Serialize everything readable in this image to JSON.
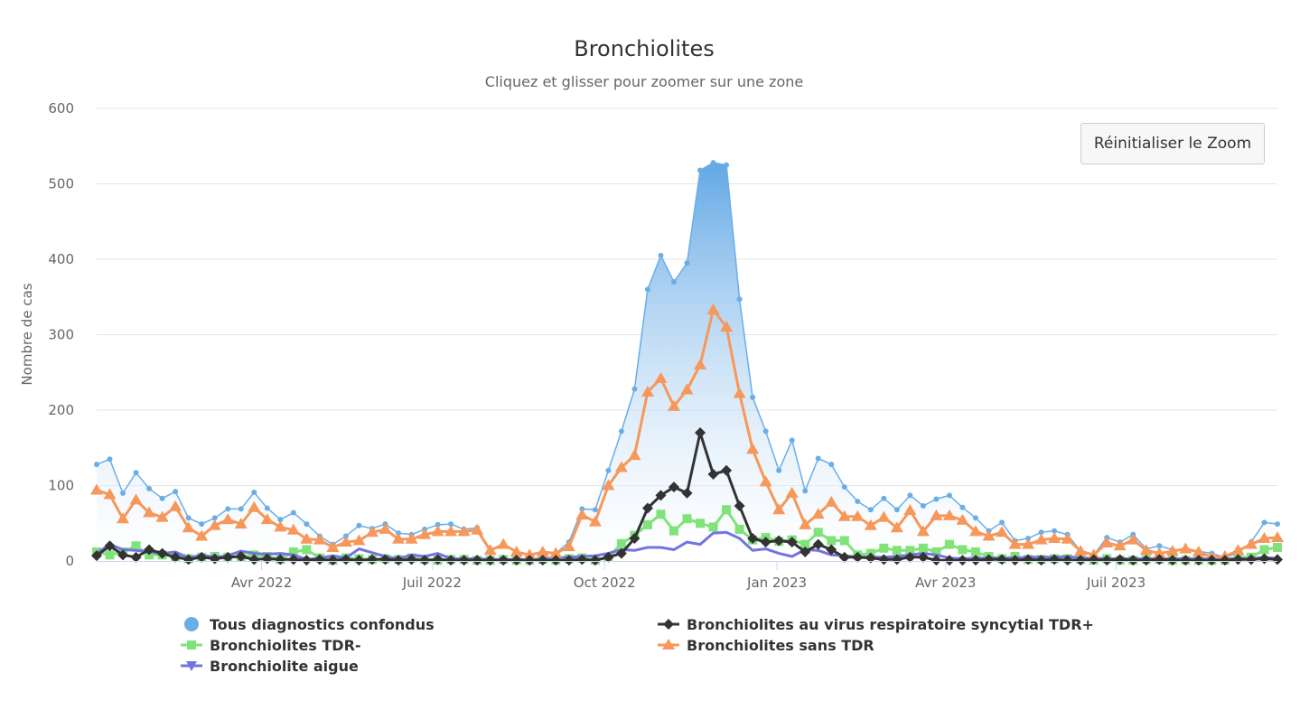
{
  "chart_data": {
    "type": "line",
    "title": "Bronchiolites",
    "subtitle": "Cliquez et glisser pour zoomer sur une zone",
    "ylabel": "Nombre de cas",
    "xlabel": "",
    "ylim": [
      0,
      600
    ],
    "yticks": [
      0,
      100,
      200,
      300,
      400,
      500,
      600
    ],
    "xticks": [
      {
        "date": "2022-04-01",
        "label": "Avr 2022"
      },
      {
        "date": "2022-07-01",
        "label": "Juil 2022"
      },
      {
        "date": "2022-10-01",
        "label": "Oct 2022"
      },
      {
        "date": "2023-01-01",
        "label": "Jan 2023"
      },
      {
        "date": "2023-04-01",
        "label": "Avr 2023"
      },
      {
        "date": "2023-07-01",
        "label": "Juil 2023"
      }
    ],
    "grid": "horizontal",
    "legend_position": "bottom",
    "x": [
      "2022-01-03",
      "2022-01-10",
      "2022-01-17",
      "2022-01-24",
      "2022-01-31",
      "2022-02-07",
      "2022-02-14",
      "2022-02-21",
      "2022-02-28",
      "2022-03-07",
      "2022-03-14",
      "2022-03-21",
      "2022-03-28",
      "2022-04-04",
      "2022-04-11",
      "2022-04-18",
      "2022-04-25",
      "2022-05-02",
      "2022-05-09",
      "2022-05-16",
      "2022-05-23",
      "2022-05-30",
      "2022-06-06",
      "2022-06-13",
      "2022-06-20",
      "2022-06-27",
      "2022-07-04",
      "2022-07-11",
      "2022-07-18",
      "2022-07-25",
      "2022-08-01",
      "2022-08-08",
      "2022-08-15",
      "2022-08-22",
      "2022-08-29",
      "2022-09-05",
      "2022-09-12",
      "2022-09-19",
      "2022-09-26",
      "2022-10-03",
      "2022-10-10",
      "2022-10-17",
      "2022-10-24",
      "2022-10-31",
      "2022-11-07",
      "2022-11-14",
      "2022-11-21",
      "2022-11-28",
      "2022-12-05",
      "2022-12-12",
      "2022-12-19",
      "2022-12-26",
      "2023-01-02",
      "2023-01-09",
      "2023-01-16",
      "2023-01-23",
      "2023-01-30",
      "2023-02-06",
      "2023-02-13",
      "2023-02-20",
      "2023-02-27",
      "2023-03-06",
      "2023-03-13",
      "2023-03-20",
      "2023-03-27",
      "2023-04-03",
      "2023-04-10",
      "2023-04-17",
      "2023-04-24",
      "2023-05-01",
      "2023-05-08",
      "2023-05-15",
      "2023-05-22",
      "2023-05-29",
      "2023-06-05",
      "2023-06-12",
      "2023-06-19",
      "2023-06-26",
      "2023-07-03",
      "2023-07-10",
      "2023-07-17",
      "2023-07-24",
      "2023-07-31",
      "2023-08-07",
      "2023-08-14",
      "2023-08-21",
      "2023-08-28",
      "2023-09-04",
      "2023-09-11",
      "2023-09-18",
      "2023-09-25"
    ],
    "series": [
      {
        "name": "Tous diagnostics confondus",
        "color": "#6aaee8",
        "marker": "circle",
        "style": "area",
        "values": [
          128,
          135,
          90,
          117,
          96,
          83,
          92,
          57,
          49,
          57,
          69,
          69,
          91,
          70,
          55,
          64,
          49,
          33,
          22,
          33,
          47,
          43,
          49,
          37,
          35,
          42,
          48,
          49,
          42,
          44,
          15,
          22,
          12,
          8,
          12,
          10,
          25,
          69,
          68,
          120,
          172,
          228,
          360,
          405,
          370,
          395,
          518,
          528,
          525,
          347,
          217,
          172,
          120,
          160,
          93,
          136,
          128,
          98,
          79,
          68,
          83,
          68,
          87,
          73,
          82,
          87,
          71,
          57,
          40,
          51,
          27,
          30,
          38,
          40,
          35,
          13,
          8,
          31,
          25,
          35,
          16,
          20,
          15,
          15,
          13,
          10,
          5,
          10,
          25,
          51,
          49
        ]
      },
      {
        "name": "Bronchiolites au virus respiratoire syncytial TDR+",
        "color": "#333333",
        "marker": "diamond",
        "style": "line",
        "values": [
          7,
          20,
          8,
          5,
          15,
          10,
          5,
          2,
          5,
          3,
          5,
          6,
          2,
          3,
          2,
          2,
          1,
          2,
          1,
          2,
          1,
          2,
          2,
          1,
          2,
          1,
          2,
          1,
          1,
          1,
          1,
          1,
          1,
          1,
          1,
          1,
          1,
          2,
          1,
          5,
          10,
          30,
          70,
          87,
          98,
          90,
          170,
          115,
          120,
          73,
          30,
          25,
          27,
          25,
          12,
          22,
          15,
          5,
          5,
          4,
          2,
          2,
          5,
          5,
          1,
          1,
          1,
          1,
          2,
          2,
          1,
          2,
          1,
          2,
          1,
          1,
          2,
          1,
          2,
          1,
          1,
          2,
          1,
          1,
          1,
          1,
          1,
          2,
          2,
          3,
          2
        ]
      },
      {
        "name": "Bronchiolites TDR-",
        "color": "#7fe37a",
        "marker": "square",
        "style": "line",
        "values": [
          12,
          8,
          12,
          20,
          8,
          8,
          6,
          3,
          5,
          6,
          5,
          6,
          8,
          6,
          2,
          12,
          15,
          4,
          1,
          4,
          3,
          2,
          3,
          2,
          4,
          2,
          1,
          2,
          2,
          1,
          1,
          2,
          1,
          1,
          2,
          1,
          3,
          4,
          1,
          5,
          23,
          34,
          48,
          62,
          40,
          56,
          50,
          45,
          68,
          42,
          28,
          31,
          26,
          28,
          22,
          38,
          27,
          27,
          8,
          10,
          17,
          14,
          14,
          17,
          12,
          22,
          15,
          12,
          6,
          3,
          6,
          2,
          2,
          3,
          3,
          2,
          1,
          3,
          1,
          1,
          2,
          2,
          1,
          1,
          1,
          1,
          1,
          5,
          5,
          15,
          18
        ]
      },
      {
        "name": "Bronchiolites sans TDR",
        "color": "#f7975a",
        "marker": "triangle",
        "style": "line",
        "values": [
          94,
          88,
          56,
          81,
          64,
          58,
          72,
          44,
          33,
          47,
          55,
          49,
          71,
          55,
          45,
          41,
          29,
          28,
          18,
          25,
          27,
          38,
          42,
          29,
          29,
          35,
          39,
          39,
          39,
          41,
          14,
          22,
          12,
          8,
          12,
          10,
          19,
          61,
          52,
          100,
          124,
          140,
          224,
          242,
          205,
          227,
          260,
          333,
          310,
          222,
          148,
          105,
          68,
          90,
          48,
          62,
          78,
          59,
          59,
          47,
          58,
          44,
          67,
          39,
          60,
          60,
          54,
          39,
          33,
          38,
          22,
          22,
          28,
          30,
          29,
          13,
          8,
          24,
          20,
          28,
          14,
          10,
          13,
          16,
          12,
          5,
          6,
          14,
          22,
          30,
          31
        ]
      },
      {
        "name": "Bronchiolite aigue",
        "color": "#7473e0",
        "marker": "triangle-down",
        "style": "line",
        "values": [
          10,
          22,
          15,
          14,
          12,
          10,
          12,
          4,
          8,
          5,
          7,
          13,
          10,
          9,
          10,
          8,
          2,
          4,
          7,
          4,
          16,
          11,
          6,
          3,
          8,
          6,
          10,
          3,
          3,
          3,
          2,
          2,
          2,
          2,
          3,
          4,
          5,
          6,
          7,
          10,
          15,
          14,
          18,
          18,
          15,
          25,
          22,
          37,
          38,
          30,
          14,
          16,
          10,
          6,
          15,
          14,
          8,
          7,
          5,
          5,
          5,
          6,
          8,
          10,
          8,
          4,
          3,
          4,
          4,
          4,
          4,
          5,
          5,
          5,
          6,
          4,
          4,
          3,
          3,
          3,
          3,
          3,
          3,
          3,
          3,
          3,
          3,
          3,
          3,
          5,
          3
        ]
      }
    ]
  },
  "controls": {
    "reset_zoom_label": "Réinitialiser le Zoom"
  }
}
